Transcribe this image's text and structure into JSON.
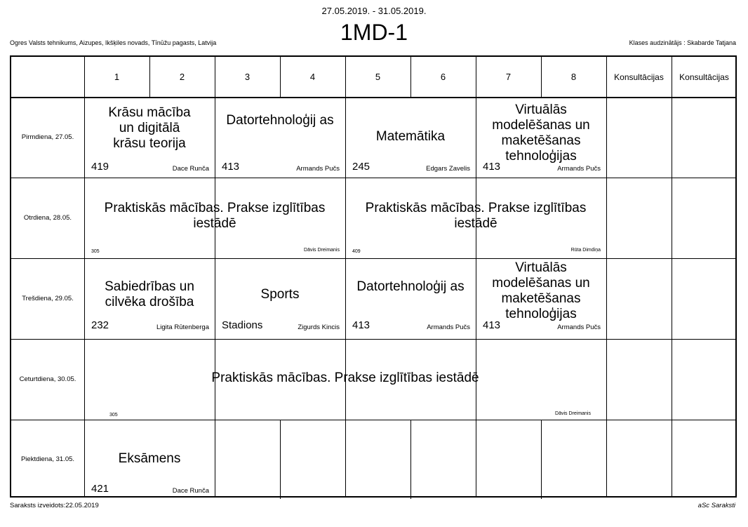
{
  "header": {
    "date_range": "27.05.2019. - 31.05.2019.",
    "class_name": "1MD-1",
    "school": "Ogres Valsts tehnikums, Aizupes, Ikšķiles novads, Tīnūžu pagasts, Latvija",
    "class_teacher": "Klases audzinātājs : Skabarde Tatjana"
  },
  "periods": [
    "1",
    "2",
    "3",
    "4",
    "5",
    "6",
    "7",
    "8",
    "Konsultācijas",
    "Konsultācijas"
  ],
  "days": [
    "Pirmdiena, 27.05.",
    "Otrdiena, 28.05.",
    "Trešdiena, 29.05.",
    "Ceturtdiena, 30.05.",
    "Piektdiena, 31.05."
  ],
  "lessons": {
    "mon_1": {
      "subject": "Krāsu mācība un digitālā krāsu teorija",
      "room": "419",
      "teacher": "Dace Runča"
    },
    "mon_2": {
      "subject": "Datortehnoloģij as",
      "room": "413",
      "teacher": "Armands Pučs"
    },
    "mon_3": {
      "subject": "Matemātika",
      "room": "245",
      "teacher": "Edgars Zavelis"
    },
    "mon_4": {
      "subject": "Virtuālās modelēšanas un maketēšanas tehnoloģijas",
      "room": "413",
      "teacher": "Armands Pučs"
    },
    "tue_1": {
      "subject": "Praktiskās mācības. Prakse izglītības iestādē",
      "room": "305",
      "teacher": "Dāvis Dreimanis"
    },
    "tue_2": {
      "subject": "Praktiskās mācības. Prakse izglītības iestādē",
      "room": "409",
      "teacher": "Rūta Dimdiņa"
    },
    "wed_1": {
      "subject": "Sabiedrības un cilvēka drošība",
      "room": "232",
      "teacher": "Ligita Rūtenberga"
    },
    "wed_2": {
      "subject": "Sports",
      "room": "Stadions",
      "teacher": "Zigurds Kincis"
    },
    "wed_3": {
      "subject": "Datortehnoloģij as",
      "room": "413",
      "teacher": "Armands Pučs"
    },
    "wed_4": {
      "subject": "Virtuālās modelēšanas un maketēšanas tehnoloģijas",
      "room": "413",
      "teacher": "Armands Pučs"
    },
    "thu_1": {
      "subject": "Praktiskās mācības. Prakse izglītības iestādē",
      "room": "305",
      "teacher": "Dāvis Dreimanis"
    },
    "fri_1": {
      "subject": "Eksāmens",
      "room": "421",
      "teacher": "Dace Runča"
    }
  },
  "footer": {
    "created": "Saraksts izveidots:22.05.2019",
    "brand": "aSc Saraksti"
  }
}
